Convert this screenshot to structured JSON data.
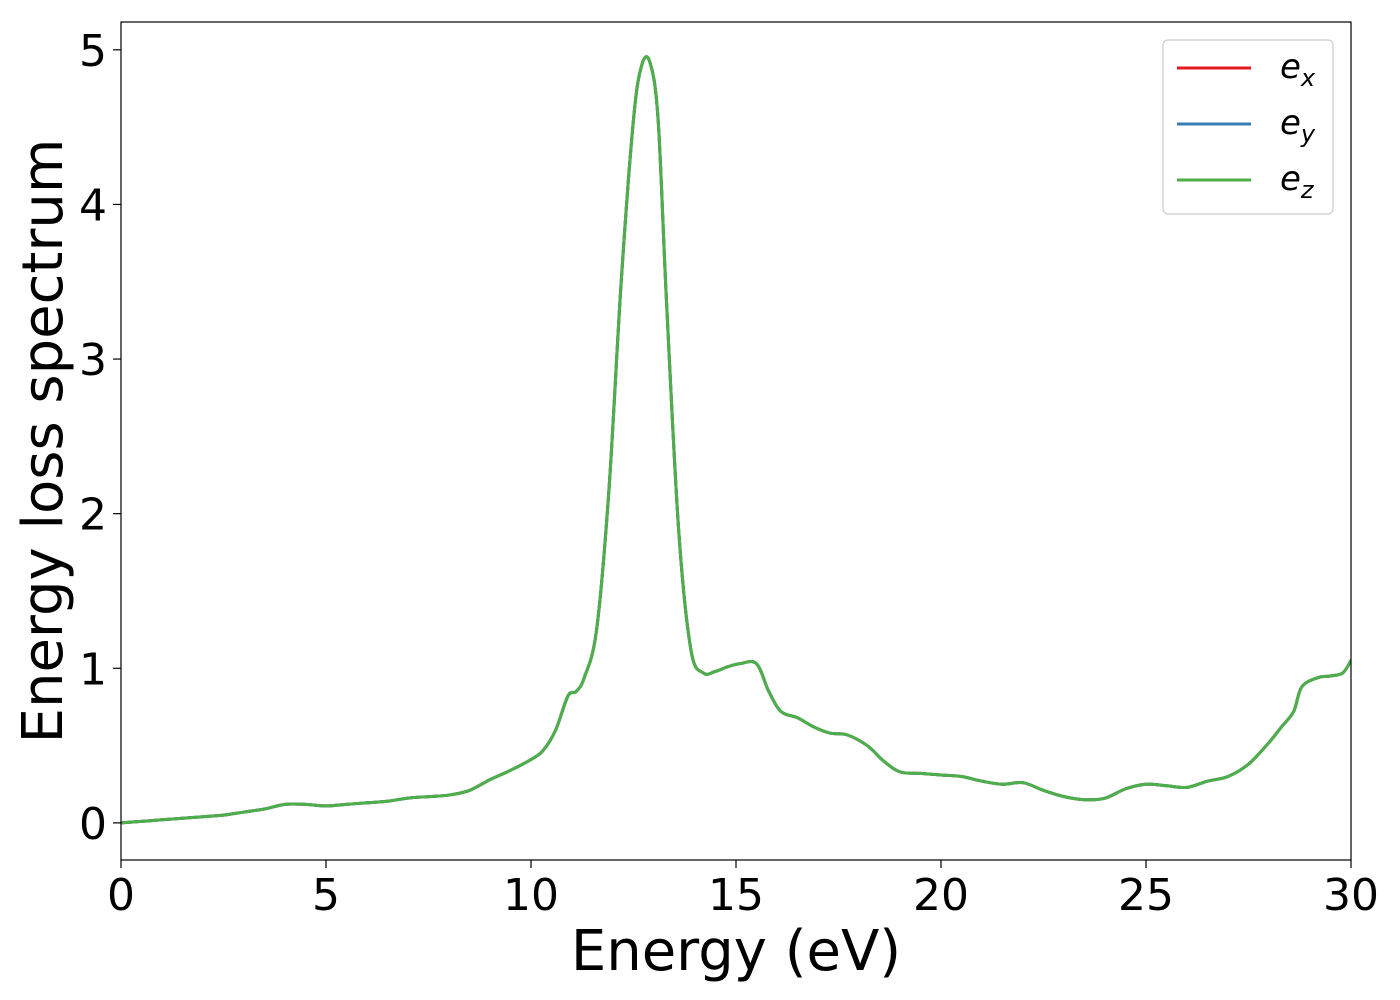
{
  "chart_data": {
    "type": "line",
    "title": "",
    "xlabel": "Energy (eV)",
    "ylabel": "Energy loss spectrum",
    "xlim": [
      0,
      30
    ],
    "ylim": [
      -0.24,
      5.18
    ],
    "xticks": [
      0,
      5,
      10,
      15,
      20,
      25,
      30
    ],
    "yticks": [
      0,
      1,
      2,
      3,
      4,
      5
    ],
    "grid": false,
    "legend_position": "top-right",
    "x": [
      0,
      0.5,
      1,
      1.5,
      2,
      2.5,
      3,
      3.5,
      4,
      4.5,
      5,
      5.5,
      6,
      6.5,
      7,
      7.5,
      8,
      8.5,
      9,
      9.5,
      10,
      10.3,
      10.6,
      10.9,
      11.1,
      11.3,
      11.6,
      11.9,
      12.2,
      12.5,
      12.7,
      12.9,
      13.1,
      13.3,
      13.6,
      13.9,
      14.2,
      14.5,
      14.8,
      15.1,
      15.5,
      15.8,
      16.1,
      16.5,
      16.9,
      17.3,
      17.7,
      18.2,
      18.6,
      19,
      19.5,
      20,
      20.5,
      21,
      21.5,
      22,
      22.5,
      23,
      23.5,
      24,
      24.5,
      25,
      25.5,
      26,
      26.5,
      27,
      27.5,
      28,
      28.3,
      28.6,
      28.8,
      29.2,
      29.5,
      29.8,
      30
    ],
    "series": [
      {
        "name": "e_x",
        "label_main": "e",
        "label_sub": "x",
        "color": "#e41a1c",
        "values": [
          0.0,
          0.01,
          0.02,
          0.03,
          0.04,
          0.05,
          0.07,
          0.09,
          0.12,
          0.12,
          0.11,
          0.12,
          0.13,
          0.14,
          0.16,
          0.17,
          0.18,
          0.21,
          0.28,
          0.34,
          0.41,
          0.47,
          0.6,
          0.82,
          0.85,
          0.94,
          1.25,
          2.15,
          3.5,
          4.55,
          4.9,
          4.92,
          4.55,
          3.4,
          1.9,
          1.12,
          0.97,
          0.98,
          1.01,
          1.03,
          1.03,
          0.85,
          0.72,
          0.68,
          0.62,
          0.58,
          0.57,
          0.5,
          0.4,
          0.33,
          0.32,
          0.31,
          0.3,
          0.27,
          0.25,
          0.26,
          0.21,
          0.17,
          0.15,
          0.16,
          0.22,
          0.25,
          0.24,
          0.23,
          0.27,
          0.3,
          0.38,
          0.52,
          0.62,
          0.72,
          0.88,
          0.94,
          0.95,
          0.97,
          1.05
        ]
      },
      {
        "name": "e_y",
        "label_main": "e",
        "label_sub": "y",
        "color": "#377eb8",
        "values": [
          0.0,
          0.01,
          0.02,
          0.03,
          0.04,
          0.05,
          0.07,
          0.09,
          0.12,
          0.12,
          0.11,
          0.12,
          0.13,
          0.14,
          0.16,
          0.17,
          0.18,
          0.21,
          0.28,
          0.34,
          0.41,
          0.47,
          0.6,
          0.82,
          0.85,
          0.94,
          1.25,
          2.15,
          3.5,
          4.55,
          4.9,
          4.92,
          4.55,
          3.4,
          1.9,
          1.12,
          0.97,
          0.98,
          1.01,
          1.03,
          1.03,
          0.85,
          0.72,
          0.68,
          0.62,
          0.58,
          0.57,
          0.5,
          0.4,
          0.33,
          0.32,
          0.31,
          0.3,
          0.27,
          0.25,
          0.26,
          0.21,
          0.17,
          0.15,
          0.16,
          0.22,
          0.25,
          0.24,
          0.23,
          0.27,
          0.3,
          0.38,
          0.52,
          0.62,
          0.72,
          0.88,
          0.94,
          0.95,
          0.97,
          1.05
        ]
      },
      {
        "name": "e_z",
        "label_main": "e",
        "label_sub": "z",
        "color": "#4daf4a",
        "values": [
          0.0,
          0.01,
          0.02,
          0.03,
          0.04,
          0.05,
          0.07,
          0.09,
          0.12,
          0.12,
          0.11,
          0.12,
          0.13,
          0.14,
          0.16,
          0.17,
          0.18,
          0.21,
          0.28,
          0.34,
          0.41,
          0.47,
          0.6,
          0.82,
          0.85,
          0.94,
          1.25,
          2.15,
          3.5,
          4.55,
          4.9,
          4.92,
          4.55,
          3.4,
          1.9,
          1.12,
          0.97,
          0.98,
          1.01,
          1.03,
          1.03,
          0.85,
          0.72,
          0.68,
          0.62,
          0.58,
          0.57,
          0.5,
          0.4,
          0.33,
          0.32,
          0.31,
          0.3,
          0.27,
          0.25,
          0.26,
          0.21,
          0.17,
          0.15,
          0.16,
          0.22,
          0.25,
          0.24,
          0.23,
          0.27,
          0.3,
          0.38,
          0.52,
          0.62,
          0.72,
          0.88,
          0.94,
          0.95,
          0.97,
          1.05
        ]
      }
    ]
  }
}
